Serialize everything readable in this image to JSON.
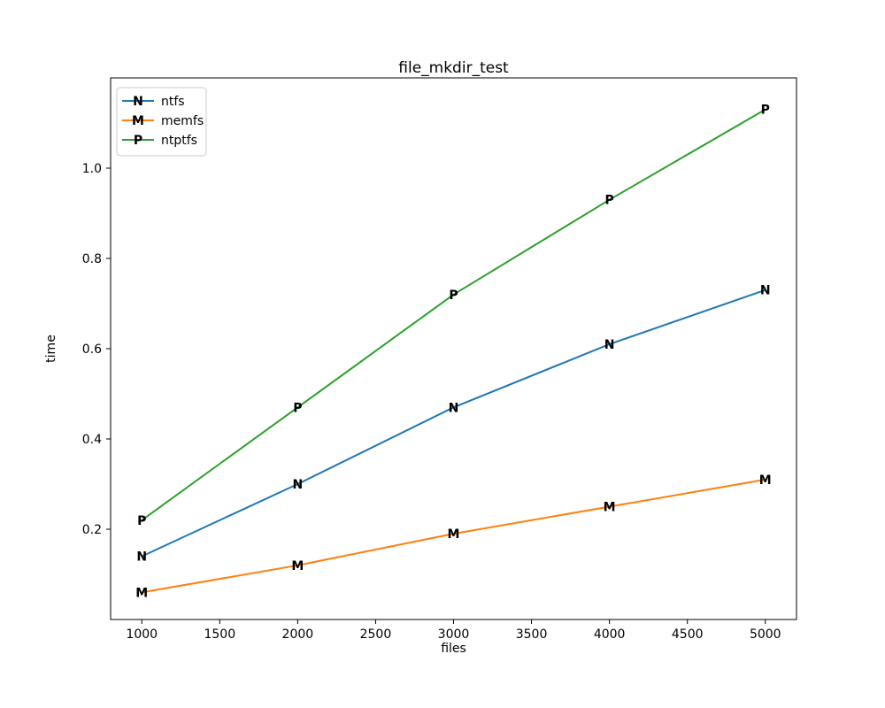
{
  "figure": {
    "background": "#ffffff",
    "spine_color": "#000000"
  },
  "chart_data": {
    "type": "line",
    "title": "file_mkdir_test",
    "xlabel": "files",
    "ylabel": "time",
    "x": [
      1000,
      2000,
      3000,
      4000,
      5000
    ],
    "series": [
      {
        "name": "ntfs",
        "color": "#1f77b4",
        "marker": "N",
        "values": [
          0.14,
          0.3,
          0.47,
          0.61,
          0.73
        ]
      },
      {
        "name": "memfs",
        "color": "#ff7f0e",
        "marker": "M",
        "values": [
          0.06,
          0.12,
          0.19,
          0.25,
          0.31
        ]
      },
      {
        "name": "ntptfs",
        "color": "#2ca02c",
        "marker": "P",
        "values": [
          0.22,
          0.47,
          0.72,
          0.93,
          1.13
        ]
      }
    ],
    "xlim": [
      800,
      5200
    ],
    "ylim": [
      0,
      1.2
    ],
    "xticks": [
      {
        "value": 1000,
        "label": "1000"
      },
      {
        "value": 1500,
        "label": "1500"
      },
      {
        "value": 2000,
        "label": "2000"
      },
      {
        "value": 2500,
        "label": "2500"
      },
      {
        "value": 3000,
        "label": "3000"
      },
      {
        "value": 3500,
        "label": "3500"
      },
      {
        "value": 4000,
        "label": "4000"
      },
      {
        "value": 4500,
        "label": "4500"
      },
      {
        "value": 5000,
        "label": "5000"
      }
    ],
    "yticks": [
      {
        "value": 0.2,
        "label": "0.2"
      },
      {
        "value": 0.4,
        "label": "0.4"
      },
      {
        "value": 0.6,
        "label": "0.6"
      },
      {
        "value": 0.8,
        "label": "0.8"
      },
      {
        "value": 1.0,
        "label": "1.0"
      }
    ],
    "grid": false,
    "legend": {
      "position": "upper-left",
      "border_color": "#cccccc",
      "background": "#ffffff"
    }
  }
}
